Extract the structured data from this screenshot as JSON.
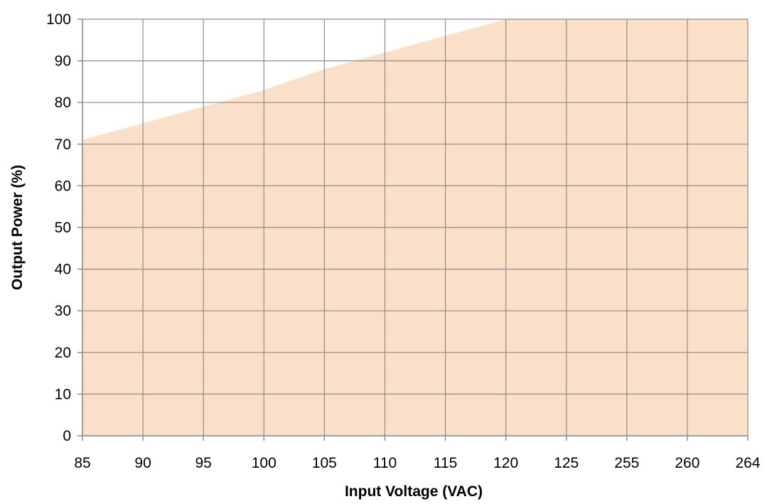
{
  "chart_data": {
    "type": "area",
    "xlabel": "Input Voltage (VAC)",
    "ylabel": "Output Power (%)",
    "x_categories": [
      "85",
      "90",
      "95",
      "100",
      "105",
      "110",
      "115",
      "120",
      "125",
      "255",
      "260",
      "264"
    ],
    "series": [
      {
        "values": [
          71,
          75,
          79,
          83,
          88,
          92,
          96,
          100,
          100,
          100,
          100,
          100
        ]
      }
    ],
    "ylim": [
      0,
      100
    ],
    "y_ticks": [
      0,
      10,
      20,
      30,
      40,
      50,
      60,
      70,
      80,
      90,
      100
    ],
    "grid": true,
    "legend": "none",
    "colors": {
      "fill": "#fadfc9",
      "grid": "#8c8c8c",
      "axis": "#8c8c8c"
    }
  }
}
